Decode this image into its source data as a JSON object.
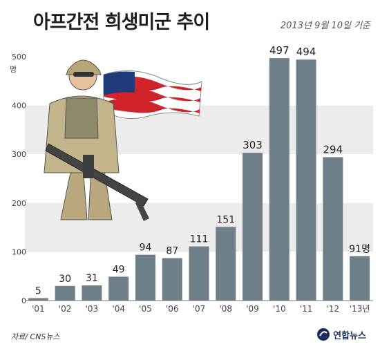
{
  "title": "아프간전 희생미군 추이",
  "date_note": "2013년 9월 10일 기준",
  "source": "자료/ CNS뉴스",
  "brand": "연합뉴스",
  "colors": {
    "bar": "#6f7f87",
    "band": "#ececec",
    "axis": "#777777"
  },
  "chart_data": {
    "type": "bar",
    "title": "아프간전 희생미군 추이",
    "categories": [
      "'01",
      "'02",
      "'03",
      "'04",
      "'05",
      "'06",
      "'07",
      "'08",
      "'09",
      "'10",
      "'11",
      "'12",
      "'13년"
    ],
    "values": [
      5,
      30,
      31,
      49,
      94,
      87,
      111,
      151,
      303,
      497,
      494,
      294,
      91
    ],
    "data_labels": [
      "5",
      "30",
      "31",
      "49",
      "94",
      "87",
      "111",
      "151",
      "303",
      "497",
      "494",
      "294",
      "91명"
    ],
    "ylim": [
      0,
      500
    ],
    "yticks": [
      0,
      100,
      200,
      300,
      400,
      500
    ],
    "ytick_labels": [
      "0",
      "100",
      "200",
      "300",
      "400",
      "500"
    ],
    "y_unit": "명",
    "xlabel": "",
    "ylabel": "",
    "grid": "alternating horizontal bands"
  }
}
